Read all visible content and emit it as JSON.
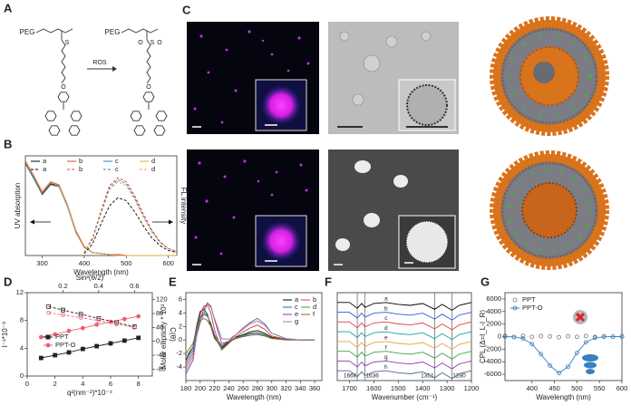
{
  "panel_labels": [
    "A",
    "B",
    "C",
    "D",
    "E",
    "F",
    "G"
  ],
  "scheme": {
    "reactant": {
      "group": "PEG",
      "atoms": [
        "S",
        "O"
      ]
    },
    "product": {
      "group": "PEG",
      "atoms": [
        "S",
        "O",
        "O",
        "O"
      ]
    },
    "arrow": "ROS"
  },
  "chart_data": [
    {
      "type": "line",
      "xlabel": "Wavelength (nm)",
      "ylabel": "UV absorption",
      "y2label": "FL intensity",
      "x": [
        260,
        280,
        300,
        320,
        340,
        360,
        380,
        400,
        420,
        440,
        460,
        480,
        500,
        520,
        540,
        560,
        580,
        600,
        620
      ],
      "xlim": [
        260,
        620
      ],
      "xticks": [
        300,
        400,
        500,
        600
      ],
      "ylim": [
        0,
        1
      ],
      "legend": "upper left",
      "series": [
        {
          "name": "a",
          "color": "#000000",
          "line": "solid",
          "values": [
            0.93,
            0.78,
            0.62,
            0.72,
            0.7,
            0.5,
            0.24,
            0.08,
            0.03,
            0.02,
            0.01,
            0.01,
            0,
            0,
            0,
            0,
            0,
            0,
            0
          ]
        },
        {
          "name": "b",
          "color": "#e0403a",
          "line": "solid",
          "values": [
            0.95,
            0.8,
            0.64,
            0.74,
            0.71,
            0.51,
            0.25,
            0.09,
            0.03,
            0.02,
            0.01,
            0.01,
            0,
            0,
            0,
            0,
            0,
            0,
            0
          ]
        },
        {
          "name": "c",
          "color": "#2a7fb8",
          "line": "solid",
          "values": [
            0.92,
            0.77,
            0.61,
            0.71,
            0.69,
            0.49,
            0.23,
            0.08,
            0.03,
            0.02,
            0.01,
            0,
            0,
            0,
            0,
            0,
            0,
            0,
            0
          ]
        },
        {
          "name": "d",
          "color": "#e8a33a",
          "line": "solid",
          "values": [
            0.94,
            0.79,
            0.63,
            0.73,
            0.7,
            0.5,
            0.24,
            0.08,
            0.03,
            0.02,
            0.01,
            0,
            0,
            0,
            0,
            0,
            0,
            0,
            0
          ]
        },
        {
          "name": "a",
          "color": "#000000",
          "line": "dashed",
          "values": [
            null,
            null,
            null,
            null,
            null,
            null,
            null,
            0.02,
            0.12,
            0.32,
            0.5,
            0.58,
            0.55,
            0.44,
            0.3,
            0.18,
            0.1,
            0.05,
            0.03
          ]
        },
        {
          "name": "b",
          "color": "#e0403a",
          "line": "dashed",
          "values": [
            null,
            null,
            null,
            null,
            null,
            null,
            null,
            0.03,
            0.18,
            0.45,
            0.7,
            0.78,
            0.74,
            0.6,
            0.42,
            0.26,
            0.14,
            0.07,
            0.04
          ]
        },
        {
          "name": "c",
          "color": "#2a7fb8",
          "line": "dashed",
          "values": [
            null,
            null,
            null,
            null,
            null,
            null,
            null,
            0.03,
            0.17,
            0.44,
            0.68,
            0.76,
            0.72,
            0.58,
            0.4,
            0.25,
            0.13,
            0.07,
            0.04
          ]
        },
        {
          "name": "d",
          "color": "#e8a33a",
          "line": "dashed",
          "values": [
            null,
            null,
            null,
            null,
            null,
            null,
            null,
            0.03,
            0.16,
            0.42,
            0.66,
            0.74,
            0.7,
            0.56,
            0.39,
            0.24,
            0.13,
            0.07,
            0.04
          ]
        }
      ]
    },
    {
      "type": "scatter",
      "xlabel": "q²(nm⁻²)*10⁻⁴",
      "x2label": "Sin²(θ/2)",
      "ylabel": "I⁻¹*10⁻⁸",
      "y2label": "C(θ)",
      "xlim": [
        0,
        9
      ],
      "xticks": [
        0,
        2,
        4,
        6,
        8
      ],
      "x2lim": [
        0,
        0.7
      ],
      "x2ticks": [
        0.2,
        0.4,
        0.6
      ],
      "ylim": [
        0,
        12
      ],
      "yticks": [
        0,
        4,
        8,
        12
      ],
      "y2lim": [
        -100,
        140
      ],
      "y2ticks": [
        -80,
        -40,
        0,
        40,
        80,
        120
      ],
      "legend": "center left",
      "series": [
        {
          "name": "PPT",
          "color": "#222222",
          "line": "solid",
          "marker": "square",
          "x": [
            1,
            2,
            3,
            4,
            5,
            6,
            7,
            8
          ],
          "values": [
            2.6,
            3.0,
            3.4,
            3.9,
            4.3,
            4.7,
            5.1,
            5.5
          ]
        },
        {
          "name": "PPT-O",
          "color": "#f06070",
          "line": "solid",
          "marker": "circle",
          "x": [
            1,
            2,
            3,
            4,
            5,
            6,
            7,
            8
          ],
          "values": [
            5.6,
            6.0,
            6.5,
            6.9,
            7.4,
            7.8,
            8.2,
            8.6
          ]
        },
        {
          "color": "#222222",
          "line": "dashed",
          "marker": "open-square",
          "xaxis": "x2",
          "axis": "y2",
          "x": [
            0.12,
            0.2,
            0.3,
            0.4,
            0.5,
            0.6
          ],
          "values": [
            100,
            90,
            78,
            66,
            54,
            42
          ]
        },
        {
          "color": "#f06070",
          "line": "dashed",
          "marker": "open-circle",
          "xaxis": "x2",
          "axis": "y2",
          "x": [
            0.12,
            0.2,
            0.3,
            0.4,
            0.5,
            0.6
          ],
          "values": [
            82,
            76,
            68,
            60,
            50,
            40
          ]
        }
      ]
    },
    {
      "type": "line",
      "xlabel": "Wavelength (nm)",
      "ylabel": "Molar ellipticity * 10³",
      "x": [
        180,
        190,
        195,
        200,
        205,
        210,
        215,
        220,
        230,
        240,
        250,
        260,
        270,
        280,
        290,
        300,
        320,
        340,
        360
      ],
      "xlim": [
        180,
        370
      ],
      "xticks": [
        180,
        200,
        220,
        240,
        260,
        280,
        300,
        320,
        340,
        360
      ],
      "ylim": [
        -6,
        7
      ],
      "yticks": [
        -4,
        -2,
        0,
        2,
        4,
        6
      ],
      "legend": "upper right",
      "series": [
        {
          "name": "a",
          "color": "#000000",
          "values": [
            -3,
            -1,
            2,
            4.2,
            4.6,
            3.8,
            2,
            0.3,
            -1.2,
            -0.3,
            0.4,
            0.8,
            1.2,
            1.4,
            1.0,
            0.4,
            0.1,
            0,
            0
          ]
        },
        {
          "name": "b",
          "color": "#e0403a",
          "values": [
            -4,
            -2,
            1.5,
            3.8,
            5.0,
            5.2,
            4.0,
            1.5,
            -1.5,
            -0.5,
            0.5,
            1.2,
            1.8,
            2.2,
            1.6,
            0.6,
            0.1,
            0,
            0
          ]
        },
        {
          "name": "c",
          "color": "#2a5fd8",
          "values": [
            -3.5,
            -1.5,
            1.2,
            3.2,
            3.8,
            3.5,
            2.5,
            0.8,
            -1.0,
            -0.2,
            0.3,
            0.6,
            0.9,
            1.0,
            0.7,
            0.3,
            0.1,
            0,
            0
          ]
        },
        {
          "name": "d",
          "color": "#3aa04a",
          "values": [
            -2.5,
            -1,
            1.8,
            3.5,
            4.0,
            3.6,
            2.4,
            0.5,
            -1.4,
            -0.4,
            0.3,
            0.7,
            1.0,
            1.1,
            0.8,
            0.3,
            0,
            0,
            0
          ]
        },
        {
          "name": "e",
          "color": "#8a3ab8",
          "values": [
            -5,
            -3,
            0.5,
            3.0,
            4.5,
            5.5,
            5.0,
            3.0,
            -0.5,
            -0.2,
            0.8,
            1.8,
            2.6,
            3.2,
            2.4,
            1.0,
            0.2,
            0,
            0
          ]
        },
        {
          "name": "f",
          "color": "#a0522d",
          "values": [
            -2,
            -0.5,
            1.5,
            2.8,
            3.2,
            2.9,
            2.0,
            0.6,
            -0.8,
            -0.2,
            0.2,
            0.5,
            0.7,
            0.8,
            0.6,
            0.2,
            0,
            0,
            0
          ]
        },
        {
          "name": "g",
          "color": "#888888",
          "values": [
            -4.5,
            -2.5,
            0.5,
            2.5,
            3.8,
            5.4,
            4.8,
            3.2,
            0.2,
            0.1,
            0.8,
            1.6,
            2.4,
            2.8,
            2.2,
            1.0,
            0.2,
            0,
            0
          ]
        }
      ]
    },
    {
      "type": "line",
      "xlabel": "Wavenumber (cm⁻¹)",
      "x": [
        1750,
        1700,
        1668,
        1650,
        1636,
        1600,
        1550,
        1500,
        1450,
        1400,
        1351,
        1320,
        1280,
        1250,
        1200
      ],
      "xlim": [
        1750,
        1200
      ],
      "xticks": [
        1700,
        1600,
        1500,
        1400,
        1300,
        1200
      ],
      "ylim": [
        0,
        9
      ],
      "legend": "inline",
      "annotations": [
        1668,
        1636,
        1351,
        1280
      ],
      "series": [
        {
          "name": "a",
          "color": "#000000",
          "values": [
            8,
            8,
            7.4,
            7.9,
            7.5,
            7.9,
            8,
            7.8,
            7.7,
            7.9,
            7.3,
            7.8,
            7.2,
            7.7,
            8
          ]
        },
        {
          "name": "b",
          "color": "#2a5fd8",
          "values": [
            7,
            7,
            6.4,
            6.9,
            6.5,
            6.9,
            7,
            6.8,
            6.7,
            6.9,
            6.3,
            6.8,
            6.2,
            6.7,
            7
          ]
        },
        {
          "name": "c",
          "color": "#e0403a",
          "values": [
            6,
            6,
            5.4,
            5.9,
            5.5,
            5.9,
            6,
            5.8,
            5.7,
            5.9,
            5.3,
            5.8,
            5.2,
            5.7,
            6
          ]
        },
        {
          "name": "d",
          "color": "#1aa0a0",
          "values": [
            5,
            5,
            4.4,
            4.9,
            4.5,
            4.9,
            5,
            4.8,
            4.7,
            4.9,
            4.3,
            4.8,
            4.2,
            4.7,
            5
          ]
        },
        {
          "name": "e",
          "color": "#e8a33a",
          "values": [
            4,
            4,
            3.4,
            3.9,
            3.5,
            3.9,
            4,
            3.8,
            3.7,
            3.9,
            3.3,
            3.8,
            3.2,
            3.7,
            4
          ]
        },
        {
          "name": "f",
          "color": "#3aa04a",
          "values": [
            3,
            3,
            2.4,
            2.9,
            2.5,
            2.9,
            3,
            2.8,
            2.7,
            2.9,
            2.3,
            2.8,
            2.2,
            2.7,
            3
          ]
        },
        {
          "name": "g",
          "color": "#8a3ab8",
          "values": [
            2,
            2,
            1.4,
            1.9,
            1.5,
            1.9,
            2,
            1.8,
            1.7,
            1.9,
            1.3,
            1.8,
            1.2,
            1.7,
            2
          ]
        },
        {
          "name": "h",
          "color": "#4a6a8a",
          "values": [
            1,
            1,
            0.4,
            0.9,
            0.5,
            0.9,
            1,
            0.8,
            0.7,
            0.9,
            0.3,
            0.8,
            0.2,
            0.7,
            1
          ]
        }
      ]
    },
    {
      "type": "line",
      "xlabel": "Wavelength (nm)",
      "ylabel": "CPL (Δ=I_L-I_R)",
      "x": [
        340,
        360,
        380,
        400,
        420,
        440,
        460,
        480,
        500,
        520,
        540,
        560,
        580,
        600
      ],
      "xlim": [
        340,
        600
      ],
      "xticks": [
        400,
        450,
        500,
        550,
        600
      ],
      "ylim": [
        -7000,
        7000
      ],
      "yticks": [
        -6000,
        -4000,
        -2000,
        0,
        2000,
        4000,
        6000
      ],
      "legend": "upper left",
      "series": [
        {
          "name": "PPT",
          "color": "#777777",
          "line": "none",
          "marker": "open-circle",
          "values": [
            100,
            -80,
            120,
            -50,
            80,
            30,
            -100,
            60,
            -40,
            90,
            -60,
            40,
            -20,
            50
          ]
        },
        {
          "name": "PPT-O",
          "color": "#3a7fc0",
          "line": "solid",
          "marker": "open-circle",
          "values": [
            0,
            -50,
            -300,
            -1200,
            -2800,
            -4600,
            -5800,
            -4800,
            -2600,
            -900,
            -200,
            -30,
            0,
            0
          ]
        }
      ]
    }
  ]
}
